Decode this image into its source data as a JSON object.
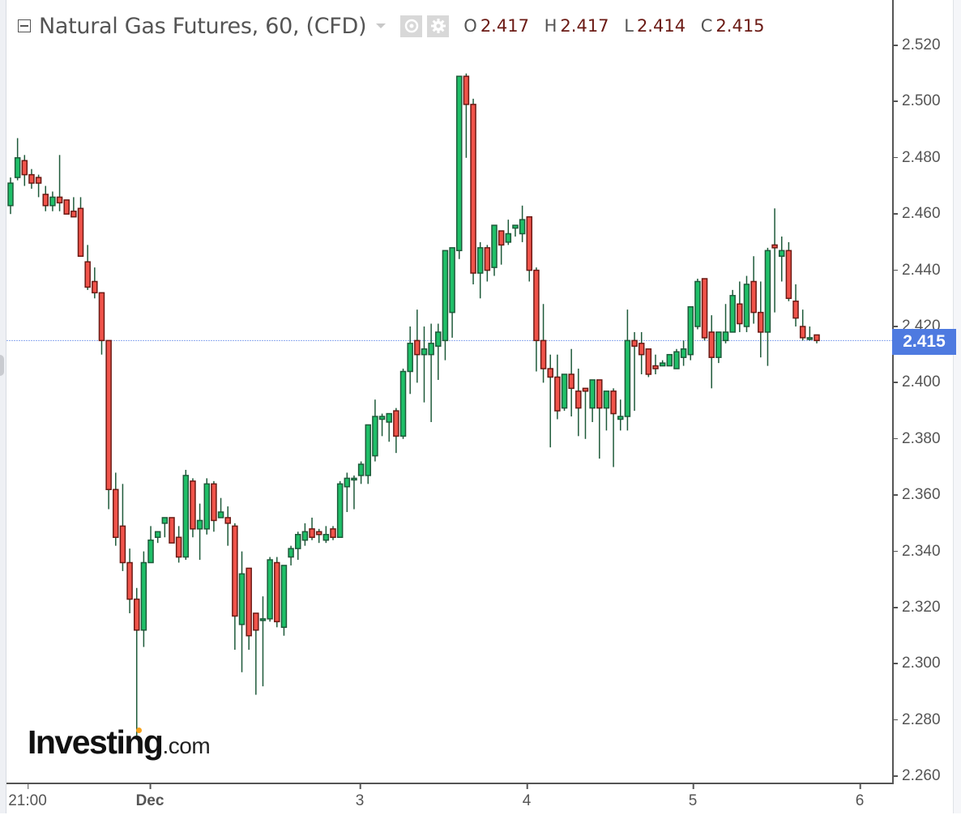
{
  "header": {
    "title": "Natural Gas Futures, 60, (CFD)",
    "icons": [
      "collapse-icon",
      "dropdown-icon",
      "eye-icon",
      "gear-icon"
    ],
    "ohlc": {
      "o_label": "O",
      "o_value": "2.417",
      "h_label": "H",
      "h_value": "2.417",
      "l_label": "L",
      "l_value": "2.414",
      "c_label": "C",
      "c_value": "2.415"
    }
  },
  "price_axis": {
    "ticks": [
      "2.520",
      "2.500",
      "2.480",
      "2.460",
      "2.440",
      "2.420",
      "2.400",
      "2.380",
      "2.360",
      "2.340",
      "2.320",
      "2.300",
      "2.280",
      "2.260"
    ],
    "last_price": "2.415",
    "last_price_color": "#4e7ae0"
  },
  "time_axis": {
    "ticks": [
      {
        "label": "21:00",
        "x": 34,
        "bold": false
      },
      {
        "label": "Dec",
        "x": 185,
        "bold": true
      },
      {
        "label": "3",
        "x": 444,
        "bold": false
      },
      {
        "label": "4",
        "x": 650,
        "bold": false
      },
      {
        "label": "5",
        "x": 855,
        "bold": false
      },
      {
        "label": "6",
        "x": 1061,
        "bold": false
      }
    ]
  },
  "branding": {
    "logo_main": "Investing",
    "logo_suffix": ".com"
  },
  "colors": {
    "up_body": "#1fbf68",
    "down_body": "#f0534a",
    "up_border": "#1e5a3a",
    "down_border": "#6b1a14",
    "wick": "#1e5a3a",
    "last_price_line": "#8aa6ee"
  },
  "chart_data": {
    "type": "candlestick",
    "title": "Natural Gas Futures, 60, (CFD)",
    "interval": "60",
    "xlabel": "",
    "ylabel": "",
    "ylim": [
      2.26,
      2.525
    ],
    "last_price": 2.415,
    "x_ticks": [
      "21:00",
      "Dec",
      "3",
      "4",
      "5",
      "6"
    ],
    "y_ticks": [
      2.26,
      2.28,
      2.3,
      2.32,
      2.34,
      2.36,
      2.38,
      2.4,
      2.42,
      2.44,
      2.46,
      2.48,
      2.5,
      2.52
    ],
    "candles": [
      {
        "o": 2.463,
        "h": 2.473,
        "l": 2.46,
        "c": 2.471
      },
      {
        "o": 2.473,
        "h": 2.487,
        "l": 2.472,
        "c": 2.48
      },
      {
        "o": 2.479,
        "h": 2.481,
        "l": 2.47,
        "c": 2.474
      },
      {
        "o": 2.474,
        "h": 2.476,
        "l": 2.469,
        "c": 2.471
      },
      {
        "o": 2.473,
        "h": 2.474,
        "l": 2.466,
        "c": 2.471
      },
      {
        "o": 2.467,
        "h": 2.47,
        "l": 2.461,
        "c": 2.463
      },
      {
        "o": 2.463,
        "h": 2.468,
        "l": 2.461,
        "c": 2.466
      },
      {
        "o": 2.466,
        "h": 2.481,
        "l": 2.461,
        "c": 2.464
      },
      {
        "o": 2.465,
        "h": 2.465,
        "l": 2.46,
        "c": 2.46
      },
      {
        "o": 2.461,
        "h": 2.466,
        "l": 2.459,
        "c": 2.459
      },
      {
        "o": 2.462,
        "h": 2.466,
        "l": 2.445,
        "c": 2.445
      },
      {
        "o": 2.443,
        "h": 2.449,
        "l": 2.433,
        "c": 2.434
      },
      {
        "o": 2.436,
        "h": 2.441,
        "l": 2.43,
        "c": 2.432
      },
      {
        "o": 2.432,
        "h": 2.432,
        "l": 2.41,
        "c": 2.415
      },
      {
        "o": 2.415,
        "h": 2.415,
        "l": 2.355,
        "c": 2.362
      },
      {
        "o": 2.362,
        "h": 2.368,
        "l": 2.342,
        "c": 2.345
      },
      {
        "o": 2.349,
        "h": 2.364,
        "l": 2.333,
        "c": 2.336
      },
      {
        "o": 2.336,
        "h": 2.341,
        "l": 2.318,
        "c": 2.323
      },
      {
        "o": 2.323,
        "h": 2.327,
        "l": 2.273,
        "c": 2.312
      },
      {
        "o": 2.312,
        "h": 2.34,
        "l": 2.306,
        "c": 2.336
      },
      {
        "o": 2.336,
        "h": 2.349,
        "l": 2.336,
        "c": 2.344
      },
      {
        "o": 2.345,
        "h": 2.347,
        "l": 2.343,
        "c": 2.347
      },
      {
        "o": 2.35,
        "h": 2.351,
        "l": 2.345,
        "c": 2.352
      },
      {
        "o": 2.352,
        "h": 2.352,
        "l": 2.343,
        "c": 2.343
      },
      {
        "o": 2.345,
        "h": 2.349,
        "l": 2.336,
        "c": 2.338
      },
      {
        "o": 2.338,
        "h": 2.369,
        "l": 2.337,
        "c": 2.367
      },
      {
        "o": 2.365,
        "h": 2.366,
        "l": 2.345,
        "c": 2.348
      },
      {
        "o": 2.348,
        "h": 2.357,
        "l": 2.337,
        "c": 2.351
      },
      {
        "o": 2.348,
        "h": 2.366,
        "l": 2.346,
        "c": 2.364
      },
      {
        "o": 2.364,
        "h": 2.365,
        "l": 2.347,
        "c": 2.351
      },
      {
        "o": 2.352,
        "h": 2.359,
        "l": 2.352,
        "c": 2.354
      },
      {
        "o": 2.352,
        "h": 2.356,
        "l": 2.342,
        "c": 2.35
      },
      {
        "o": 2.349,
        "h": 2.35,
        "l": 2.305,
        "c": 2.317
      },
      {
        "o": 2.314,
        "h": 2.34,
        "l": 2.297,
        "c": 2.332
      },
      {
        "o": 2.334,
        "h": 2.334,
        "l": 2.305,
        "c": 2.31
      },
      {
        "o": 2.318,
        "h": 2.313,
        "l": 2.289,
        "c": 2.312
      },
      {
        "o": 2.316,
        "h": 2.324,
        "l": 2.292,
        "c": 2.316
      },
      {
        "o": 2.316,
        "h": 2.338,
        "l": 2.315,
        "c": 2.337
      },
      {
        "o": 2.336,
        "h": 2.338,
        "l": 2.313,
        "c": 2.315
      },
      {
        "o": 2.313,
        "h": 2.335,
        "l": 2.31,
        "c": 2.335
      },
      {
        "o": 2.338,
        "h": 2.342,
        "l": 2.335,
        "c": 2.341
      },
      {
        "o": 2.341,
        "h": 2.347,
        "l": 2.337,
        "c": 2.346
      },
      {
        "o": 2.344,
        "h": 2.35,
        "l": 2.342,
        "c": 2.347
      },
      {
        "o": 2.348,
        "h": 2.352,
        "l": 2.344,
        "c": 2.345
      },
      {
        "o": 2.347,
        "h": 2.348,
        "l": 2.343,
        "c": 2.346
      },
      {
        "o": 2.344,
        "h": 2.349,
        "l": 2.343,
        "c": 2.346
      },
      {
        "o": 2.348,
        "h": 2.349,
        "l": 2.344,
        "c": 2.345
      },
      {
        "o": 2.345,
        "h": 2.365,
        "l": 2.345,
        "c": 2.364
      },
      {
        "o": 2.363,
        "h": 2.368,
        "l": 2.354,
        "c": 2.366
      },
      {
        "o": 2.366,
        "h": 2.367,
        "l": 2.355,
        "c": 2.366
      },
      {
        "o": 2.367,
        "h": 2.372,
        "l": 2.364,
        "c": 2.371
      },
      {
        "o": 2.367,
        "h": 2.369,
        "l": 2.364,
        "c": 2.385
      },
      {
        "o": 2.374,
        "h": 2.394,
        "l": 2.372,
        "c": 2.388
      },
      {
        "o": 2.387,
        "h": 2.389,
        "l": 2.381,
        "c": 2.388
      },
      {
        "o": 2.386,
        "h": 2.388,
        "l": 2.379,
        "c": 2.389
      },
      {
        "o": 2.39,
        "h": 2.391,
        "l": 2.375,
        "c": 2.381
      },
      {
        "o": 2.381,
        "h": 2.405,
        "l": 2.38,
        "c": 2.404
      },
      {
        "o": 2.404,
        "h": 2.42,
        "l": 2.396,
        "c": 2.414
      },
      {
        "o": 2.415,
        "h": 2.426,
        "l": 2.4,
        "c": 2.41
      },
      {
        "o": 2.41,
        "h": 2.42,
        "l": 2.393,
        "c": 2.412
      },
      {
        "o": 2.41,
        "h": 2.421,
        "l": 2.386,
        "c": 2.414
      },
      {
        "o": 2.413,
        "h": 2.421,
        "l": 2.401,
        "c": 2.418
      },
      {
        "o": 2.415,
        "h": 2.425,
        "l": 2.408,
        "c": 2.447
      },
      {
        "o": 2.425,
        "h": 2.447,
        "l": 2.416,
        "c": 2.448
      },
      {
        "o": 2.447,
        "h": 2.509,
        "l": 2.444,
        "c": 2.509
      },
      {
        "o": 2.509,
        "h": 2.51,
        "l": 2.48,
        "c": 2.499
      },
      {
        "o": 2.499,
        "h": 2.501,
        "l": 2.435,
        "c": 2.439
      },
      {
        "o": 2.439,
        "h": 2.45,
        "l": 2.43,
        "c": 2.448
      },
      {
        "o": 2.448,
        "h": 2.449,
        "l": 2.436,
        "c": 2.44
      },
      {
        "o": 2.441,
        "h": 2.453,
        "l": 2.438,
        "c": 2.456
      },
      {
        "o": 2.454,
        "h": 2.454,
        "l": 2.442,
        "c": 2.449
      },
      {
        "o": 2.45,
        "h": 2.458,
        "l": 2.449,
        "c": 2.453
      },
      {
        "o": 2.455,
        "h": 2.456,
        "l": 2.452,
        "c": 2.456
      },
      {
        "o": 2.453,
        "h": 2.463,
        "l": 2.45,
        "c": 2.458
      },
      {
        "o": 2.459,
        "h": 2.459,
        "l": 2.436,
        "c": 2.44
      },
      {
        "o": 2.44,
        "h": 2.441,
        "l": 2.404,
        "c": 2.415
      },
      {
        "o": 2.415,
        "h": 2.428,
        "l": 2.4,
        "c": 2.405
      },
      {
        "o": 2.405,
        "h": 2.41,
        "l": 2.377,
        "c": 2.402
      },
      {
        "o": 2.402,
        "h": 2.41,
        "l": 2.387,
        "c": 2.39
      },
      {
        "o": 2.391,
        "h": 2.402,
        "l": 2.39,
        "c": 2.403
      },
      {
        "o": 2.403,
        "h": 2.412,
        "l": 2.388,
        "c": 2.398
      },
      {
        "o": 2.397,
        "h": 2.405,
        "l": 2.381,
        "c": 2.391
      },
      {
        "o": 2.398,
        "h": 2.398,
        "l": 2.38,
        "c": 2.397
      },
      {
        "o": 2.391,
        "h": 2.4,
        "l": 2.386,
        "c": 2.401
      },
      {
        "o": 2.401,
        "h": 2.4,
        "l": 2.373,
        "c": 2.391
      },
      {
        "o": 2.391,
        "h": 2.397,
        "l": 2.383,
        "c": 2.397
      },
      {
        "o": 2.397,
        "h": 2.398,
        "l": 2.37,
        "c": 2.389
      },
      {
        "o": 2.387,
        "h": 2.394,
        "l": 2.383,
        "c": 2.388
      },
      {
        "o": 2.388,
        "h": 2.426,
        "l": 2.383,
        "c": 2.415
      },
      {
        "o": 2.415,
        "h": 2.418,
        "l": 2.39,
        "c": 2.413
      },
      {
        "o": 2.414,
        "h": 2.418,
        "l": 2.403,
        "c": 2.41
      },
      {
        "o": 2.412,
        "h": 2.412,
        "l": 2.402,
        "c": 2.403
      },
      {
        "o": 2.406,
        "h": 2.41,
        "l": 2.403,
        "c": 2.405
      },
      {
        "o": 2.406,
        "h": 2.408,
        "l": 2.407,
        "c": 2.407
      },
      {
        "o": 2.406,
        "h": 2.41,
        "l": 2.406,
        "c": 2.41
      },
      {
        "o": 2.405,
        "h": 2.412,
        "l": 2.405,
        "c": 2.411
      },
      {
        "o": 2.409,
        "h": 2.415,
        "l": 2.406,
        "c": 2.412
      },
      {
        "o": 2.41,
        "h": 2.426,
        "l": 2.408,
        "c": 2.427
      },
      {
        "o": 2.42,
        "h": 2.437,
        "l": 2.419,
        "c": 2.436
      },
      {
        "o": 2.437,
        "h": 2.437,
        "l": 2.415,
        "c": 2.416
      },
      {
        "o": 2.418,
        "h": 2.424,
        "l": 2.398,
        "c": 2.409
      },
      {
        "o": 2.409,
        "h": 2.418,
        "l": 2.407,
        "c": 2.418
      },
      {
        "o": 2.415,
        "h": 2.428,
        "l": 2.414,
        "c": 2.418
      },
      {
        "o": 2.418,
        "h": 2.433,
        "l": 2.418,
        "c": 2.431
      },
      {
        "o": 2.428,
        "h": 2.436,
        "l": 2.418,
        "c": 2.421
      },
      {
        "o": 2.42,
        "h": 2.438,
        "l": 2.418,
        "c": 2.435
      },
      {
        "o": 2.436,
        "h": 2.445,
        "l": 2.421,
        "c": 2.425
      },
      {
        "o": 2.425,
        "h": 2.436,
        "l": 2.409,
        "c": 2.418
      },
      {
        "o": 2.418,
        "h": 2.448,
        "l": 2.406,
        "c": 2.447
      },
      {
        "o": 2.449,
        "h": 2.462,
        "l": 2.425,
        "c": 2.448
      },
      {
        "o": 2.445,
        "h": 2.452,
        "l": 2.436,
        "c": 2.447
      },
      {
        "o": 2.447,
        "h": 2.45,
        "l": 2.429,
        "c": 2.43
      },
      {
        "o": 2.429,
        "h": 2.435,
        "l": 2.42,
        "c": 2.423
      },
      {
        "o": 2.42,
        "h": 2.426,
        "l": 2.415,
        "c": 2.416
      },
      {
        "o": 2.416,
        "h": 2.42,
        "l": 2.415,
        "c": 2.416
      },
      {
        "o": 2.417,
        "h": 2.417,
        "l": 2.414,
        "c": 2.415
      }
    ]
  }
}
